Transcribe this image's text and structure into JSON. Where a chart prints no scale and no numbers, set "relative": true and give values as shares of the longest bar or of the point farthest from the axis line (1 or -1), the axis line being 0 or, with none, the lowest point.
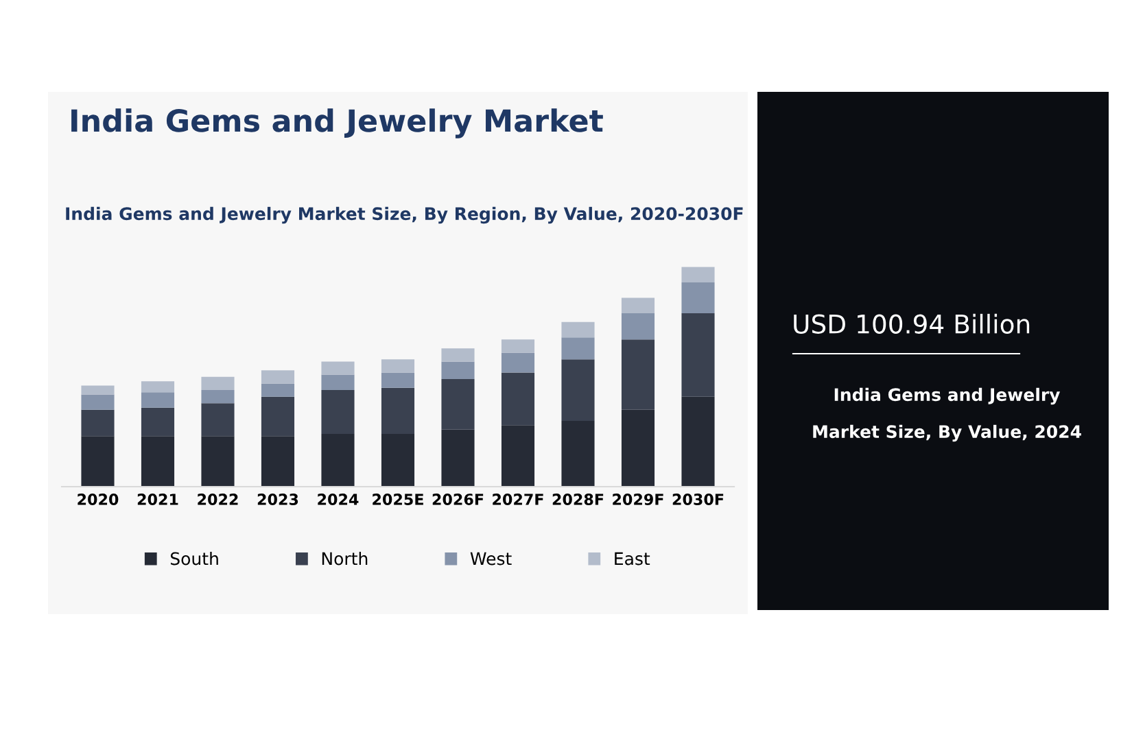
{
  "chart_data": {
    "type": "bar",
    "title": "India Gems and Jewelry Market",
    "subtitle": "India Gems and Jewelry Market Size, By Region, By Value, 2020-2030F",
    "categories": [
      "2020",
      "2021",
      "2022",
      "2023",
      "2024",
      "2025E",
      "2026F",
      "2027F",
      "2028F",
      "2029F",
      "2030F"
    ],
    "series": [
      {
        "name": "South",
        "color": "#262b36",
        "values": [
          0.23,
          0.23,
          0.23,
          0.23,
          0.24,
          0.24,
          0.26,
          0.28,
          0.3,
          0.35,
          0.41
        ]
      },
      {
        "name": "North",
        "color": "#3a4150",
        "values": [
          0.12,
          0.13,
          0.15,
          0.18,
          0.2,
          0.21,
          0.23,
          0.24,
          0.28,
          0.32,
          0.38
        ]
      },
      {
        "name": "West",
        "color": "#8593aa",
        "values": [
          0.07,
          0.07,
          0.06,
          0.06,
          0.07,
          0.07,
          0.08,
          0.09,
          0.1,
          0.12,
          0.14
        ]
      },
      {
        "name": "East",
        "color": "#b3bccb",
        "values": [
          0.04,
          0.05,
          0.06,
          0.06,
          0.06,
          0.06,
          0.06,
          0.06,
          0.07,
          0.07,
          0.07
        ]
      }
    ],
    "stacked": true,
    "relative": true,
    "legend": "bottom",
    "grid": false,
    "annotations": [
      "USD 100.94 Billion",
      "India Gems and Jewelry",
      "Market Size, By Value, 2024"
    ]
  }
}
